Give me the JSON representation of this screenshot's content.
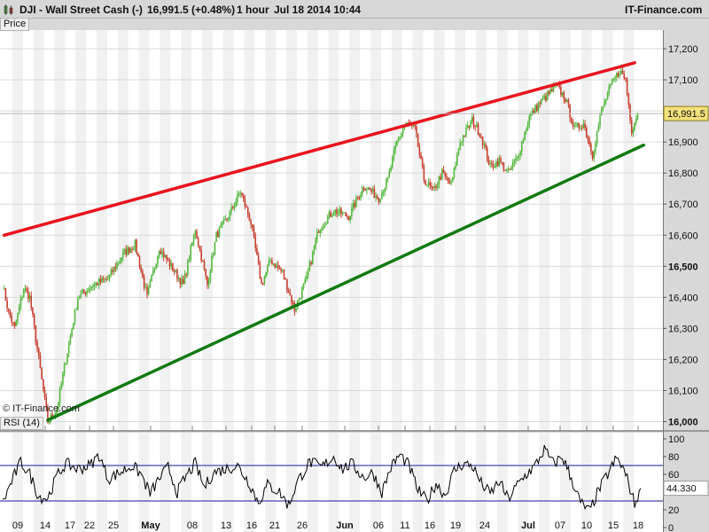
{
  "header": {
    "instrument": "DJI - Wall Street Cash (-)",
    "price_change": "16,991.5 (+0.48%)",
    "interval": "1 hour",
    "datetime": "Jul 18 2014 10:44",
    "brand": "IT-Finance.com"
  },
  "watermark": "© IT-Finance.com",
  "colors": {
    "up": "#55b840",
    "down": "#c84030",
    "resistance": "#e8141e",
    "support": "#117a11",
    "rsi_line": "#000000",
    "rsi_bands": "#1a1a99",
    "last_price_bg": "#f2e07a"
  },
  "chart_data": [
    {
      "type": "candlestick",
      "panel_label": "Price",
      "last_price": 16991.5,
      "last_price_label": "16,991.5",
      "ylim": [
        15970,
        17260
      ],
      "y_ticks": [
        16000,
        16100,
        16200,
        16300,
        16400,
        16500,
        16600,
        16700,
        16800,
        16900,
        17000,
        17100,
        17200
      ],
      "y_tick_labels": [
        "16,000",
        "16,100",
        "16,200",
        "16,300",
        "16,400",
        "16,500",
        "16,600",
        "16,700",
        "16,800",
        "16,900",
        "17,000",
        "17,100",
        "17,200"
      ],
      "y_bold_ticks": [
        16000,
        16500
      ],
      "x_tick_labels": [
        "09",
        "14",
        "17",
        "22",
        "25",
        "May",
        "08",
        "13",
        "16",
        "21",
        "26",
        "Jun",
        "06",
        "11",
        "16",
        "19",
        "24",
        "Jul",
        "07",
        "10",
        "15",
        "18"
      ],
      "x_bold_labels": [
        "May",
        "Jun",
        "Jul"
      ],
      "grid": true,
      "key_points": [
        {
          "bar": 0,
          "value": 16440
        },
        {
          "bar": 4,
          "value": 16350
        },
        {
          "bar": 8,
          "value": 16300
        },
        {
          "bar": 14,
          "value": 16430
        },
        {
          "bar": 18,
          "value": 16400
        },
        {
          "bar": 24,
          "value": 16200
        },
        {
          "bar": 30,
          "value": 16000
        },
        {
          "bar": 36,
          "value": 16040
        },
        {
          "bar": 42,
          "value": 16200
        },
        {
          "bar": 50,
          "value": 16400
        },
        {
          "bar": 60,
          "value": 16440
        },
        {
          "bar": 70,
          "value": 16460
        },
        {
          "bar": 80,
          "value": 16540
        },
        {
          "bar": 88,
          "value": 16570
        },
        {
          "bar": 96,
          "value": 16400
        },
        {
          "bar": 104,
          "value": 16560
        },
        {
          "bar": 112,
          "value": 16500
        },
        {
          "bar": 120,
          "value": 16440
        },
        {
          "bar": 128,
          "value": 16620
        },
        {
          "bar": 136,
          "value": 16440
        },
        {
          "bar": 142,
          "value": 16600
        },
        {
          "bar": 150,
          "value": 16660
        },
        {
          "bar": 158,
          "value": 16740
        },
        {
          "bar": 165,
          "value": 16640
        },
        {
          "bar": 172,
          "value": 16440
        },
        {
          "bar": 178,
          "value": 16520
        },
        {
          "bar": 186,
          "value": 16480
        },
        {
          "bar": 194,
          "value": 16360
        },
        {
          "bar": 202,
          "value": 16460
        },
        {
          "bar": 210,
          "value": 16620
        },
        {
          "bar": 220,
          "value": 16680
        },
        {
          "bar": 230,
          "value": 16660
        },
        {
          "bar": 240,
          "value": 16760
        },
        {
          "bar": 250,
          "value": 16720
        },
        {
          "bar": 256,
          "value": 16780
        },
        {
          "bar": 262,
          "value": 16900
        },
        {
          "bar": 268,
          "value": 16960
        },
        {
          "bar": 274,
          "value": 16940
        },
        {
          "bar": 280,
          "value": 16780
        },
        {
          "bar": 286,
          "value": 16740
        },
        {
          "bar": 292,
          "value": 16800
        },
        {
          "bar": 298,
          "value": 16760
        },
        {
          "bar": 304,
          "value": 16900
        },
        {
          "bar": 312,
          "value": 16970
        },
        {
          "bar": 318,
          "value": 16920
        },
        {
          "bar": 324,
          "value": 16820
        },
        {
          "bar": 330,
          "value": 16840
        },
        {
          "bar": 336,
          "value": 16800
        },
        {
          "bar": 342,
          "value": 16850
        },
        {
          "bar": 350,
          "value": 16980
        },
        {
          "bar": 356,
          "value": 17020
        },
        {
          "bar": 362,
          "value": 17050
        },
        {
          "bar": 368,
          "value": 17080
        },
        {
          "bar": 374,
          "value": 17040
        },
        {
          "bar": 380,
          "value": 16940
        },
        {
          "bar": 386,
          "value": 16960
        },
        {
          "bar": 392,
          "value": 16860
        },
        {
          "bar": 398,
          "value": 17000
        },
        {
          "bar": 404,
          "value": 17080
        },
        {
          "bar": 410,
          "value": 17130
        },
        {
          "bar": 414,
          "value": 17100
        },
        {
          "bar": 418,
          "value": 16940
        },
        {
          "bar": 422,
          "value": 16991.5
        }
      ],
      "trendlines": [
        {
          "name": "resistance",
          "from": {
            "bar": 1,
            "value": 16600
          },
          "to": {
            "bar": 420,
            "value": 17155
          }
        },
        {
          "name": "support",
          "from": {
            "bar": 30,
            "value": 16005
          },
          "to": {
            "bar": 426,
            "value": 16890
          }
        }
      ]
    },
    {
      "type": "line",
      "panel_label": "RSI (14)",
      "ylim": [
        -5,
        107
      ],
      "y_tick_labels": [
        "100",
        "80",
        "60",
        "40",
        "20",
        "0"
      ],
      "y_ticks": [
        100,
        80,
        60,
        40,
        20,
        0
      ],
      "bands": [
        70,
        30
      ],
      "last_value": 44.33,
      "last_value_label": "44.330",
      "key_points": [
        {
          "bar": 0,
          "value": 28
        },
        {
          "bar": 6,
          "value": 52
        },
        {
          "bar": 12,
          "value": 74
        },
        {
          "bar": 18,
          "value": 60
        },
        {
          "bar": 24,
          "value": 35
        },
        {
          "bar": 30,
          "value": 33
        },
        {
          "bar": 36,
          "value": 58
        },
        {
          "bar": 42,
          "value": 72
        },
        {
          "bar": 50,
          "value": 66
        },
        {
          "bar": 58,
          "value": 70
        },
        {
          "bar": 64,
          "value": 82
        },
        {
          "bar": 70,
          "value": 55
        },
        {
          "bar": 78,
          "value": 62
        },
        {
          "bar": 86,
          "value": 70
        },
        {
          "bar": 92,
          "value": 60
        },
        {
          "bar": 98,
          "value": 38
        },
        {
          "bar": 104,
          "value": 55
        },
        {
          "bar": 110,
          "value": 68
        },
        {
          "bar": 116,
          "value": 40
        },
        {
          "bar": 122,
          "value": 58
        },
        {
          "bar": 128,
          "value": 72
        },
        {
          "bar": 134,
          "value": 45
        },
        {
          "bar": 140,
          "value": 62
        },
        {
          "bar": 148,
          "value": 66
        },
        {
          "bar": 156,
          "value": 70
        },
        {
          "bar": 164,
          "value": 50
        },
        {
          "bar": 170,
          "value": 28
        },
        {
          "bar": 176,
          "value": 48
        },
        {
          "bar": 184,
          "value": 40
        },
        {
          "bar": 190,
          "value": 25
        },
        {
          "bar": 196,
          "value": 52
        },
        {
          "bar": 204,
          "value": 74
        },
        {
          "bar": 212,
          "value": 68
        },
        {
          "bar": 220,
          "value": 80
        },
        {
          "bar": 226,
          "value": 66
        },
        {
          "bar": 232,
          "value": 72
        },
        {
          "bar": 240,
          "value": 56
        },
        {
          "bar": 246,
          "value": 62
        },
        {
          "bar": 252,
          "value": 40
        },
        {
          "bar": 258,
          "value": 68
        },
        {
          "bar": 264,
          "value": 82
        },
        {
          "bar": 270,
          "value": 70
        },
        {
          "bar": 276,
          "value": 42
        },
        {
          "bar": 282,
          "value": 30
        },
        {
          "bar": 288,
          "value": 50
        },
        {
          "bar": 294,
          "value": 36
        },
        {
          "bar": 300,
          "value": 64
        },
        {
          "bar": 306,
          "value": 72
        },
        {
          "bar": 312,
          "value": 70
        },
        {
          "bar": 318,
          "value": 50
        },
        {
          "bar": 324,
          "value": 38
        },
        {
          "bar": 330,
          "value": 52
        },
        {
          "bar": 336,
          "value": 32
        },
        {
          "bar": 342,
          "value": 48
        },
        {
          "bar": 348,
          "value": 60
        },
        {
          "bar": 354,
          "value": 70
        },
        {
          "bar": 360,
          "value": 88
        },
        {
          "bar": 366,
          "value": 72
        },
        {
          "bar": 372,
          "value": 80
        },
        {
          "bar": 378,
          "value": 55
        },
        {
          "bar": 384,
          "value": 28
        },
        {
          "bar": 390,
          "value": 18
        },
        {
          "bar": 396,
          "value": 42
        },
        {
          "bar": 402,
          "value": 60
        },
        {
          "bar": 408,
          "value": 78
        },
        {
          "bar": 412,
          "value": 68
        },
        {
          "bar": 416,
          "value": 50
        },
        {
          "bar": 420,
          "value": 26
        },
        {
          "bar": 424,
          "value": 44.33
        }
      ]
    }
  ]
}
